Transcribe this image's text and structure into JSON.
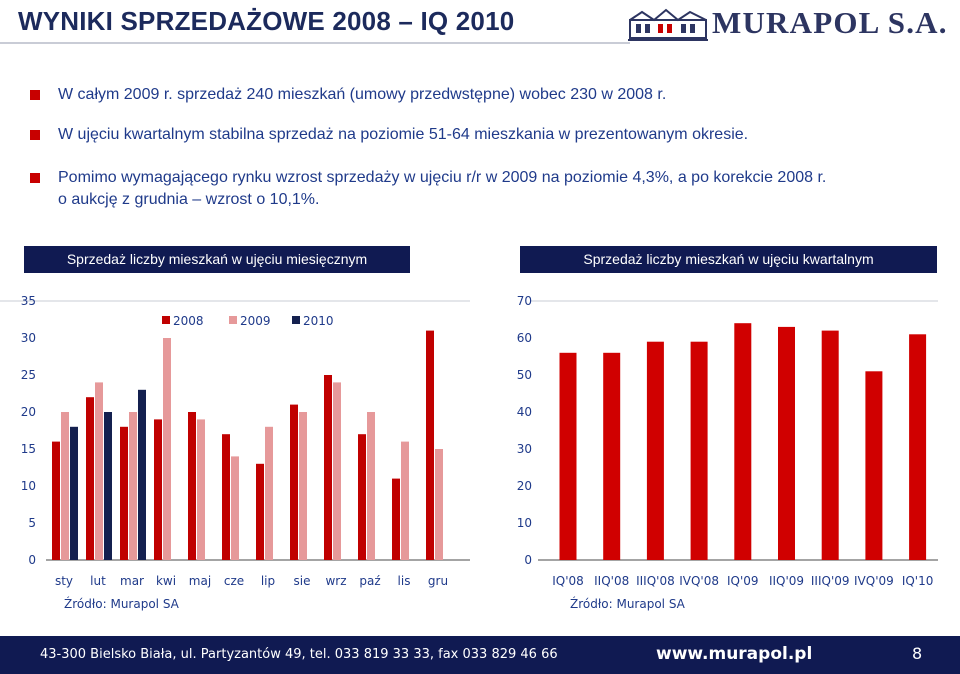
{
  "header": {
    "title": "WYNIKI SPRZEDAŻOWE 2008 – IQ 2010",
    "logo_text": "MURAPOL S.A."
  },
  "bullets": [
    "W całym 2009 r. sprzedaż 240 mieszkań (umowy przedwstępne) wobec 230 w 2008 r.",
    "W ujęciu kwartalnym stabilna sprzedaż na poziomie 51-64 mieszkania w prezentowanym okresie.",
    "Pomimo wymagającego rynku wzrost sprzedaży w ujęciu r/r w 2009 na poziomie 4,3%, a po korekcie 2008 r.",
    "o aukcję z grudnia – wzrost o 10,1%."
  ],
  "colors": {
    "series_2008": "#c00000",
    "series_2009": "#e6999a",
    "series_2010": "#14204f",
    "quarterly_bar": "#d00000",
    "bullet_marker": "#c80000",
    "header_bg": "#101a52"
  },
  "chart_data": [
    {
      "type": "bar",
      "header": "Sprzedaż liczby mieszkań w ujęciu miesięcznym",
      "categories": [
        "sty",
        "lut",
        "mar",
        "kwi",
        "maj",
        "cze",
        "lip",
        "sie",
        "wrz",
        "paź",
        "lis",
        "gru"
      ],
      "series": [
        {
          "name": "2008",
          "values": [
            16,
            22,
            18,
            19,
            20,
            17,
            13,
            21,
            25,
            17,
            11,
            31
          ]
        },
        {
          "name": "2009",
          "values": [
            20,
            24,
            20,
            30,
            19,
            14,
            18,
            20,
            24,
            20,
            16,
            15
          ]
        },
        {
          "name": "2010",
          "values": [
            18,
            20,
            23,
            null,
            null,
            null,
            null,
            null,
            null,
            null,
            null,
            null
          ]
        }
      ],
      "ylim": [
        0,
        35
      ],
      "yticks": [
        0,
        5,
        10,
        15,
        20,
        25,
        30,
        35
      ],
      "legend": "top-center",
      "grid": false,
      "source": "Źródło: Murapol SA"
    },
    {
      "type": "bar",
      "header": "Sprzedaż liczby mieszkań w ujęciu kwartalnym",
      "categories": [
        "IQ'08",
        "IIQ'08",
        "IIIQ'08",
        "IVQ'08",
        "IQ'09",
        "IIQ'09",
        "IIIQ'09",
        "IVQ'09",
        "IQ'10"
      ],
      "values": [
        56,
        56,
        59,
        59,
        64,
        63,
        62,
        51,
        61
      ],
      "ylim": [
        0,
        70
      ],
      "yticks": [
        0,
        10,
        20,
        30,
        40,
        50,
        60,
        70
      ],
      "grid": false,
      "source": "Źródło: Murapol SA"
    }
  ],
  "footer": {
    "address": "43-300 Bielsko Biała, ul. Partyzantów 49, tel. 033 819 33 33, fax 033 829 46 66",
    "url": "www.murapol.pl",
    "page": "8"
  }
}
